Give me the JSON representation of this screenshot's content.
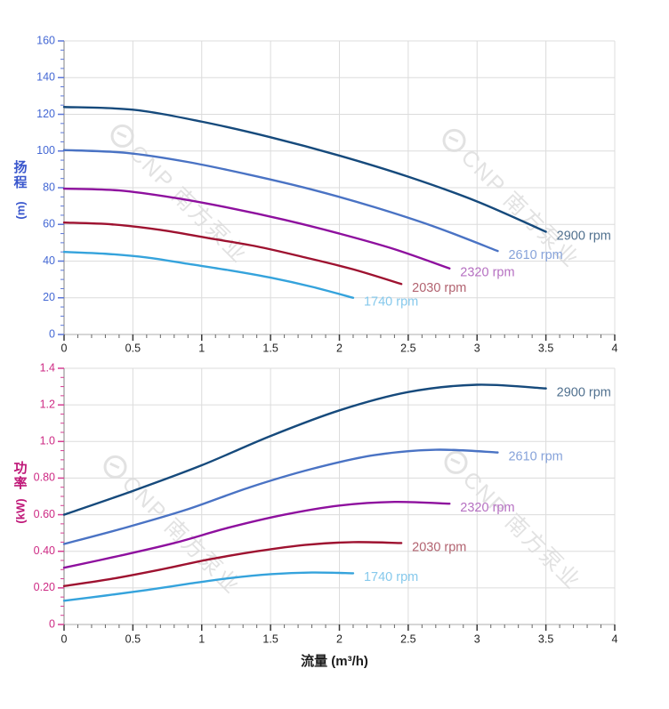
{
  "watermark": {
    "text": "CNP 南方泵业"
  },
  "chart_data": [
    {
      "type": "line",
      "title": "",
      "ylabel": "扬程 (m)",
      "ylabel_cjk": "扬\n程",
      "ylabel_unit": "(m)",
      "xlabel": "",
      "xlim": [
        0,
        4
      ],
      "ylim": [
        0,
        160
      ],
      "grid": true,
      "x_minor_step": 0.1,
      "y_minor_step": 5,
      "x_ticks": [
        {
          "v": 0,
          "label": "0"
        },
        {
          "v": 0.5,
          "label": "0.5"
        },
        {
          "v": 1,
          "label": "1"
        },
        {
          "v": 1.5,
          "label": "1.5"
        },
        {
          "v": 2,
          "label": "2"
        },
        {
          "v": 2.5,
          "label": "2.5"
        },
        {
          "v": 3,
          "label": "3"
        },
        {
          "v": 3.5,
          "label": "3.5"
        },
        {
          "v": 4,
          "label": "4"
        }
      ],
      "y_ticks": [
        {
          "v": 0,
          "label": "0"
        },
        {
          "v": 20,
          "label": "20"
        },
        {
          "v": 40,
          "label": "40"
        },
        {
          "v": 60,
          "label": "60"
        },
        {
          "v": 80,
          "label": "80"
        },
        {
          "v": 100,
          "label": "100"
        },
        {
          "v": 120,
          "label": "120"
        },
        {
          "v": 140,
          "label": "140"
        },
        {
          "v": 160,
          "label": "160"
        }
      ],
      "y_axis_color": "#a0a0a0",
      "y_tick_color": "#5b76d8",
      "y_label_color": "#4468d4",
      "x_tick_color": "#3a3a3a",
      "x_label_color": "#222222",
      "series": [
        {
          "name": "2900 rpm",
          "color": "#164a7c",
          "label_color": "#51718f",
          "points": [
            [
              0,
              124
            ],
            [
              0.5,
              122.5
            ],
            [
              1,
              116
            ],
            [
              1.5,
              107.5
            ],
            [
              2,
              97.5
            ],
            [
              2.5,
              86
            ],
            [
              3,
              72.5
            ],
            [
              3.5,
              56
            ]
          ]
        },
        {
          "name": "2610 rpm",
          "color": "#4a73c4",
          "label_color": "#87a3da",
          "points": [
            [
              0,
              100.5
            ],
            [
              0.45,
              99
            ],
            [
              0.9,
              94
            ],
            [
              1.35,
              87
            ],
            [
              1.8,
              79
            ],
            [
              2.25,
              69.5
            ],
            [
              2.7,
              58.5
            ],
            [
              3.15,
              45.5
            ]
          ]
        },
        {
          "name": "2320 rpm",
          "color": "#8e109e",
          "label_color": "#b671c2",
          "points": [
            [
              0,
              79.5
            ],
            [
              0.4,
              78.5
            ],
            [
              0.8,
              74.5
            ],
            [
              1.2,
              69
            ],
            [
              1.6,
              62.5
            ],
            [
              2,
              55
            ],
            [
              2.4,
              46.5
            ],
            [
              2.8,
              36
            ]
          ]
        },
        {
          "name": "2030 rpm",
          "color": "#9e1230",
          "label_color": "#b26370",
          "points": [
            [
              0,
              61
            ],
            [
              0.35,
              60
            ],
            [
              0.7,
              57
            ],
            [
              1.05,
              52.5
            ],
            [
              1.4,
              48
            ],
            [
              1.75,
              42
            ],
            [
              2.1,
              35.5
            ],
            [
              2.45,
              27.5
            ]
          ]
        },
        {
          "name": "1740 rpm",
          "color": "#35a3dc",
          "label_color": "#86c9ec",
          "points": [
            [
              0,
              45
            ],
            [
              0.3,
              44
            ],
            [
              0.6,
              42
            ],
            [
              0.9,
              38.5
            ],
            [
              1.2,
              35
            ],
            [
              1.5,
              31
            ],
            [
              1.8,
              26
            ],
            [
              2.1,
              20
            ]
          ]
        }
      ]
    },
    {
      "type": "line",
      "title": "",
      "ylabel": "功率 (kW)",
      "ylabel_cjk": "功\n率",
      "ylabel_unit": "(kW)",
      "xlabel": "流量 (m³/h)",
      "xlim": [
        0,
        4
      ],
      "ylim": [
        0,
        1.4
      ],
      "grid": true,
      "x_minor_step": 0.1,
      "y_minor_step": 0.05,
      "x_ticks": [
        {
          "v": 0,
          "label": "0"
        },
        {
          "v": 0.5,
          "label": "0.5"
        },
        {
          "v": 1,
          "label": "1"
        },
        {
          "v": 1.5,
          "label": "1.5"
        },
        {
          "v": 2,
          "label": "2"
        },
        {
          "v": 2.5,
          "label": "2.5"
        },
        {
          "v": 3,
          "label": "3"
        },
        {
          "v": 3.5,
          "label": "3.5"
        },
        {
          "v": 4,
          "label": "4"
        }
      ],
      "y_ticks": [
        {
          "v": 0,
          "label": "0"
        },
        {
          "v": 0.2,
          "label": "0.20"
        },
        {
          "v": 0.4,
          "label": "0.40"
        },
        {
          "v": 0.6,
          "label": "0.60"
        },
        {
          "v": 0.8,
          "label": "0.80"
        },
        {
          "v": 1.0,
          "label": "1.0"
        },
        {
          "v": 1.2,
          "label": "1.2"
        },
        {
          "v": 1.4,
          "label": "1.4"
        }
      ],
      "y_axis_color": "#a0a0a0",
      "y_tick_color": "#d63d92",
      "y_label_color": "#cd2a84",
      "x_tick_color": "#3a3a3a",
      "x_label_color": "#222222",
      "series": [
        {
          "name": "2900 rpm",
          "color": "#164a7c",
          "label_color": "#51718f",
          "points": [
            [
              0,
              0.6
            ],
            [
              0.5,
              0.73
            ],
            [
              1,
              0.87
            ],
            [
              1.5,
              1.03
            ],
            [
              2,
              1.17
            ],
            [
              2.5,
              1.27
            ],
            [
              3,
              1.31
            ],
            [
              3.5,
              1.29
            ]
          ]
        },
        {
          "name": "2610 rpm",
          "color": "#4a73c4",
          "label_color": "#87a3da",
          "points": [
            [
              0,
              0.44
            ],
            [
              0.45,
              0.53
            ],
            [
              0.9,
              0.63
            ],
            [
              1.35,
              0.75
            ],
            [
              1.8,
              0.85
            ],
            [
              2.25,
              0.925
            ],
            [
              2.7,
              0.955
            ],
            [
              3.15,
              0.94
            ]
          ]
        },
        {
          "name": "2320 rpm",
          "color": "#8e109e",
          "label_color": "#b671c2",
          "points": [
            [
              0,
              0.31
            ],
            [
              0.4,
              0.375
            ],
            [
              0.8,
              0.445
            ],
            [
              1.2,
              0.53
            ],
            [
              1.6,
              0.6
            ],
            [
              2,
              0.65
            ],
            [
              2.4,
              0.67
            ],
            [
              2.8,
              0.66
            ]
          ]
        },
        {
          "name": "2030 rpm",
          "color": "#9e1230",
          "label_color": "#b26370",
          "points": [
            [
              0,
              0.21
            ],
            [
              0.35,
              0.25
            ],
            [
              0.7,
              0.3
            ],
            [
              1.05,
              0.355
            ],
            [
              1.4,
              0.4
            ],
            [
              1.75,
              0.435
            ],
            [
              2.1,
              0.45
            ],
            [
              2.45,
              0.445
            ]
          ]
        },
        {
          "name": "1740 rpm",
          "color": "#35a3dc",
          "label_color": "#86c9ec",
          "points": [
            [
              0,
              0.13
            ],
            [
              0.3,
              0.158
            ],
            [
              0.6,
              0.188
            ],
            [
              0.9,
              0.222
            ],
            [
              1.2,
              0.253
            ],
            [
              1.5,
              0.275
            ],
            [
              1.8,
              0.284
            ],
            [
              2.1,
              0.28
            ]
          ]
        }
      ]
    }
  ]
}
